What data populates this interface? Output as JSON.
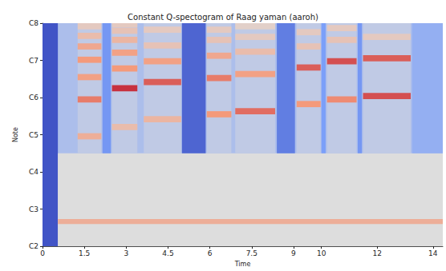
{
  "chart_data": {
    "type": "heatmap",
    "title": "Constant Q-spectogram of Raag yaman (aaroh)",
    "x_label": "Time",
    "y_label": "Note",
    "xlim": [
      0,
      14.35
    ],
    "xticks": [
      0,
      1.5,
      3,
      4.5,
      6,
      7.5,
      9,
      10,
      12,
      14
    ],
    "ylim": [
      36,
      108
    ],
    "yticks": [
      {
        "value": 36,
        "label": "C2"
      },
      {
        "value": 48,
        "label": "C3"
      },
      {
        "value": 60,
        "label": "C4"
      },
      {
        "value": 72,
        "label": "C5"
      },
      {
        "value": 84,
        "label": "C6"
      },
      {
        "value": 96,
        "label": "C7"
      },
      {
        "value": 108,
        "label": "C8"
      }
    ],
    "grid": false,
    "color_range": [
      -80,
      0
    ],
    "cells": [
      [
        0,
        14.35,
        36,
        108,
        -50
      ],
      [
        0,
        0.55,
        36,
        108,
        -78
      ],
      [
        0.55,
        14.35,
        36,
        66,
        -40
      ],
      [
        0.55,
        14.35,
        43.2,
        44.8,
        -26
      ],
      [
        2.15,
        2.45,
        66,
        108,
        -62
      ],
      [
        5.0,
        5.85,
        66,
        108,
        -74
      ],
      [
        8.4,
        9.05,
        66,
        108,
        -68
      ],
      [
        10.0,
        10.15,
        66,
        108,
        -60
      ],
      [
        11.3,
        11.45,
        66,
        108,
        -62
      ],
      [
        13.25,
        14.35,
        66,
        108,
        -55
      ],
      [
        1.26,
        2.11,
        66,
        108,
        -46
      ],
      [
        2.49,
        3.4,
        66,
        108,
        -46
      ],
      [
        3.63,
        4.97,
        66,
        108,
        -46
      ],
      [
        5.89,
        6.77,
        66,
        108,
        -46
      ],
      [
        6.91,
        8.34,
        66,
        108,
        -46
      ],
      [
        9.11,
        9.97,
        66,
        108,
        -46
      ],
      [
        10.2,
        11.26,
        66,
        108,
        -46
      ],
      [
        11.49,
        13.2,
        66,
        108,
        -46
      ],
      [
        1.26,
        2.11,
        70.5,
        72.5,
        -26
      ],
      [
        1.26,
        2.11,
        82.4,
        84.4,
        -16
      ],
      [
        1.26,
        2.11,
        89.6,
        91.6,
        -22
      ],
      [
        1.26,
        2.11,
        95.2,
        97.2,
        -20
      ],
      [
        1.26,
        2.11,
        99.5,
        101.5,
        -24
      ],
      [
        1.26,
        2.11,
        102.9,
        104.9,
        -30
      ],
      [
        1.26,
        2.11,
        106,
        108,
        -34
      ],
      [
        2.49,
        3.4,
        73.5,
        75.5,
        -30
      ],
      [
        2.49,
        3.4,
        86,
        88,
        -6
      ],
      [
        2.49,
        3.4,
        92.4,
        94.4,
        -20
      ],
      [
        2.49,
        3.4,
        97.5,
        99.5,
        -22
      ],
      [
        2.49,
        3.4,
        101.6,
        103.6,
        -28
      ],
      [
        2.49,
        3.4,
        104.6,
        106.6,
        -32
      ],
      [
        2.49,
        3.4,
        106.7,
        108,
        -34
      ],
      [
        3.63,
        4.97,
        76,
        78,
        -28
      ],
      [
        3.63,
        4.97,
        88,
        90,
        -12
      ],
      [
        3.63,
        4.97,
        94.7,
        96.7,
        -22
      ],
      [
        3.63,
        4.97,
        99.8,
        101.8,
        -32
      ],
      [
        3.63,
        4.97,
        104.9,
        106.9,
        -34
      ],
      [
        5.89,
        6.77,
        77.6,
        79.6,
        -20
      ],
      [
        5.89,
        6.77,
        89.3,
        91.3,
        -16
      ],
      [
        5.89,
        6.77,
        96.5,
        98.5,
        -24
      ],
      [
        5.89,
        6.77,
        101.6,
        103.6,
        -32
      ],
      [
        5.89,
        6.77,
        104.9,
        106.9,
        -34
      ],
      [
        6.91,
        8.34,
        78.6,
        80.6,
        -14
      ],
      [
        6.91,
        8.34,
        90.6,
        92.6,
        -22
      ],
      [
        6.91,
        8.34,
        97.8,
        99.8,
        -30
      ],
      [
        6.91,
        8.34,
        102.6,
        104.6,
        -34
      ],
      [
        6.91,
        8.34,
        106,
        108,
        -36
      ],
      [
        9.11,
        9.97,
        80.9,
        82.9,
        -20
      ],
      [
        9.11,
        9.97,
        92.7,
        94.7,
        -12
      ],
      [
        9.11,
        9.97,
        99.5,
        101.5,
        -32
      ],
      [
        9.11,
        9.97,
        104.1,
        106.1,
        -34
      ],
      [
        10.2,
        11.26,
        82.4,
        84.4,
        -18
      ],
      [
        10.2,
        11.26,
        94.7,
        96.7,
        -10
      ],
      [
        10.2,
        11.26,
        101.6,
        103.6,
        -32
      ],
      [
        10.2,
        11.26,
        105.4,
        107.4,
        -34
      ],
      [
        11.49,
        13.2,
        83.5,
        85.5,
        -10
      ],
      [
        11.49,
        13.2,
        95.7,
        97.7,
        -12
      ],
      [
        11.49,
        13.2,
        102.6,
        104.6,
        -34
      ]
    ]
  }
}
